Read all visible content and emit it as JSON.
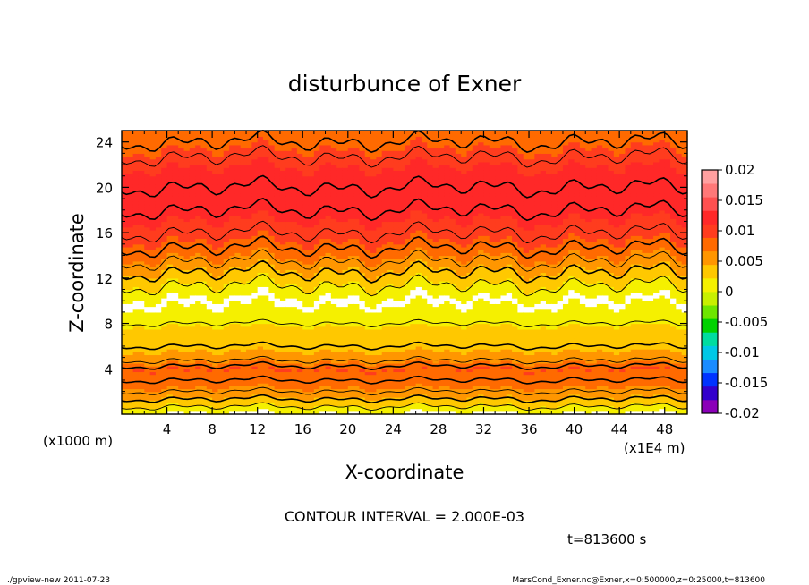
{
  "chart_data": {
    "type": "heatmap",
    "title": "disturbunce of Exner",
    "xlabel": "X-coordinate",
    "ylabel": "Z-coordinate",
    "x_unit": "(x1E4 m)",
    "y_unit": "(x1000 m)",
    "xlim": [
      0,
      50
    ],
    "ylim": [
      0,
      25
    ],
    "x_ticks": [
      "4",
      "8",
      "12",
      "16",
      "20",
      "24",
      "28",
      "32",
      "36",
      "40",
      "44",
      "48"
    ],
    "x_tick_values": [
      4,
      8,
      12,
      16,
      20,
      24,
      28,
      32,
      36,
      40,
      44,
      48
    ],
    "y_ticks": [
      "4",
      "8",
      "12",
      "16",
      "20",
      "24"
    ],
    "y_tick_values": [
      4,
      8,
      12,
      16,
      20,
      24
    ],
    "contour_interval": "CONTOUR INTERVAL = 2.000E-03",
    "time_label": "t=813600 s",
    "colorbar": {
      "range": [
        -0.02,
        0.02
      ],
      "labels": [
        "0.02",
        "0.015",
        "0.01",
        "0.005",
        "0",
        "-0.005",
        "-0.01",
        "-0.015",
        "-0.02"
      ],
      "label_values": [
        0.02,
        0.015,
        0.01,
        0.005,
        0,
        -0.005,
        -0.01,
        -0.015,
        -0.02
      ],
      "colors": [
        "#8b00b8",
        "#3300cc",
        "#0033ff",
        "#1a8cff",
        "#00c8e6",
        "#00dca0",
        "#00d200",
        "#6ee600",
        "#c8f000",
        "#f5f000",
        "#ffc800",
        "#ff9600",
        "#ff6a00",
        "#ff3c1e",
        "#ff2828",
        "#ff5050",
        "#ff7878",
        "#ffa0a0"
      ]
    },
    "profile": {
      "z": [
        0,
        1,
        2,
        3,
        4,
        5,
        10,
        12,
        14,
        16,
        18,
        20,
        22,
        24,
        25
      ],
      "value": [
        0.0,
        0.003,
        0.006,
        0.008,
        0.009,
        0.005,
        0.0,
        0.003,
        0.007,
        0.01,
        0.012,
        0.012,
        0.011,
        0.008,
        0.007
      ]
    },
    "grid": false
  },
  "footer": {
    "left": "./gpview-new   2011-07-23",
    "right": "MarsCond_Exner.nc@Exner,x=0:500000,z=0:25000,t=813600"
  }
}
